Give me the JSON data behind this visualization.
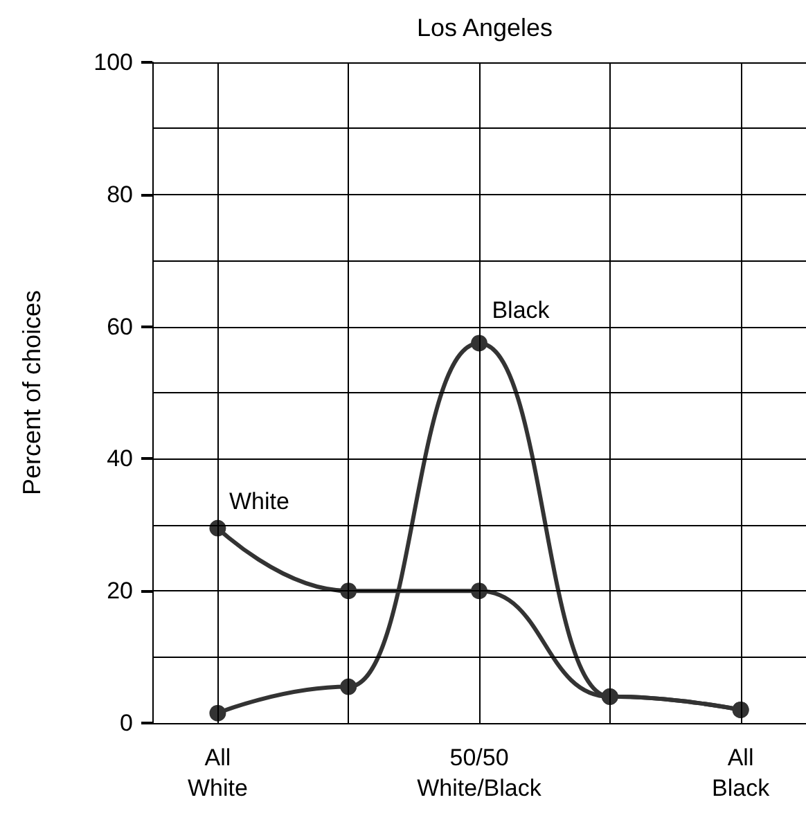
{
  "chart_data": {
    "type": "line",
    "title": "Los Angeles",
    "ylabel": "Percent of choices",
    "categories": [
      "All\nWhite",
      null,
      "50/50\nWhite/Black",
      null,
      "All\nBlack"
    ],
    "series": [
      {
        "name": "White",
        "color": "#333333",
        "values": [
          29.5,
          20,
          20,
          4,
          2
        ]
      },
      {
        "name": "Black",
        "color": "#333333",
        "values": [
          1.5,
          5.5,
          57.5,
          4,
          2
        ]
      }
    ],
    "ylim": [
      0,
      100
    ],
    "yticks": [
      0,
      {
        "value": 10,
        "label": null
      },
      20,
      {
        "value": 30,
        "label": null
      },
      40,
      {
        "value": 50,
        "label": null
      },
      60,
      {
        "value": 70,
        "label": null
      },
      80,
      {
        "value": 90,
        "label": null
      },
      100
    ],
    "grid": true,
    "legend": false,
    "marker": "circle",
    "line_style": "solid"
  }
}
